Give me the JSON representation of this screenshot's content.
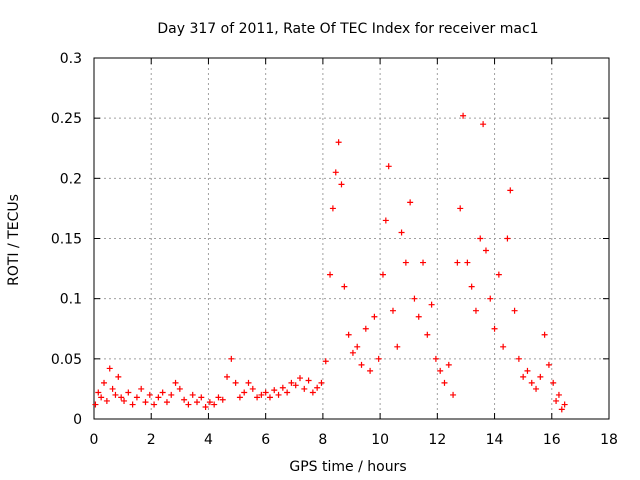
{
  "chart_data": {
    "type": "scatter",
    "title": "Day 317 of 2011, Rate Of TEC Index for receiver mac1",
    "xlabel": "GPS time / hours",
    "ylabel": "ROTI / TECUs",
    "xlim": [
      0,
      18
    ],
    "ylim": [
      0,
      0.3
    ],
    "xticks": [
      0,
      2,
      4,
      6,
      8,
      10,
      12,
      14,
      16,
      18
    ],
    "yticks": [
      0,
      0.05,
      0.1,
      0.15,
      0.2,
      0.25,
      0.3
    ],
    "xtick_labels": [
      "0",
      "2",
      "4",
      "6",
      "8",
      "10",
      "12",
      "14",
      "16",
      "18"
    ],
    "ytick_labels": [
      "0",
      "0.05",
      "0.1",
      "0.15",
      "0.2",
      "0.25",
      "0.3"
    ],
    "grid": true,
    "marker": "+",
    "marker_color": "#ff0000",
    "series": [
      {
        "name": "mac1",
        "points": [
          [
            0.05,
            0.012
          ],
          [
            0.15,
            0.022
          ],
          [
            0.25,
            0.018
          ],
          [
            0.35,
            0.03
          ],
          [
            0.45,
            0.015
          ],
          [
            0.55,
            0.042
          ],
          [
            0.65,
            0.025
          ],
          [
            0.75,
            0.02
          ],
          [
            0.85,
            0.035
          ],
          [
            0.95,
            0.018
          ],
          [
            1.05,
            0.015
          ],
          [
            1.2,
            0.022
          ],
          [
            1.35,
            0.012
          ],
          [
            1.5,
            0.018
          ],
          [
            1.65,
            0.025
          ],
          [
            1.8,
            0.014
          ],
          [
            1.95,
            0.02
          ],
          [
            2.1,
            0.012
          ],
          [
            2.25,
            0.018
          ],
          [
            2.4,
            0.022
          ],
          [
            2.55,
            0.014
          ],
          [
            2.7,
            0.02
          ],
          [
            2.85,
            0.03
          ],
          [
            3.0,
            0.025
          ],
          [
            3.15,
            0.016
          ],
          [
            3.3,
            0.012
          ],
          [
            3.45,
            0.02
          ],
          [
            3.6,
            0.014
          ],
          [
            3.75,
            0.018
          ],
          [
            3.9,
            0.01
          ],
          [
            4.05,
            0.014
          ],
          [
            4.2,
            0.012
          ],
          [
            4.35,
            0.018
          ],
          [
            4.5,
            0.016
          ],
          [
            4.65,
            0.035
          ],
          [
            4.8,
            0.05
          ],
          [
            4.95,
            0.03
          ],
          [
            5.1,
            0.018
          ],
          [
            5.25,
            0.022
          ],
          [
            5.4,
            0.03
          ],
          [
            5.55,
            0.025
          ],
          [
            5.7,
            0.018
          ],
          [
            5.85,
            0.02
          ],
          [
            6.0,
            0.022
          ],
          [
            6.15,
            0.018
          ],
          [
            6.3,
            0.024
          ],
          [
            6.45,
            0.02
          ],
          [
            6.6,
            0.026
          ],
          [
            6.75,
            0.022
          ],
          [
            6.9,
            0.03
          ],
          [
            7.05,
            0.028
          ],
          [
            7.2,
            0.034
          ],
          [
            7.35,
            0.025
          ],
          [
            7.5,
            0.032
          ],
          [
            7.65,
            0.022
          ],
          [
            7.8,
            0.026
          ],
          [
            7.95,
            0.03
          ],
          [
            8.1,
            0.048
          ],
          [
            8.25,
            0.12
          ],
          [
            8.35,
            0.175
          ],
          [
            8.45,
            0.205
          ],
          [
            8.55,
            0.23
          ],
          [
            8.65,
            0.195
          ],
          [
            8.75,
            0.11
          ],
          [
            8.9,
            0.07
          ],
          [
            9.05,
            0.055
          ],
          [
            9.2,
            0.06
          ],
          [
            9.35,
            0.045
          ],
          [
            9.5,
            0.075
          ],
          [
            9.65,
            0.04
          ],
          [
            9.8,
            0.085
          ],
          [
            9.95,
            0.05
          ],
          [
            10.1,
            0.12
          ],
          [
            10.2,
            0.165
          ],
          [
            10.3,
            0.21
          ],
          [
            10.45,
            0.09
          ],
          [
            10.6,
            0.06
          ],
          [
            10.75,
            0.155
          ],
          [
            10.9,
            0.13
          ],
          [
            11.05,
            0.18
          ],
          [
            11.2,
            0.1
          ],
          [
            11.35,
            0.085
          ],
          [
            11.5,
            0.13
          ],
          [
            11.65,
            0.07
          ],
          [
            11.8,
            0.095
          ],
          [
            11.95,
            0.05
          ],
          [
            12.1,
            0.04
          ],
          [
            12.25,
            0.03
          ],
          [
            12.4,
            0.045
          ],
          [
            12.55,
            0.02
          ],
          [
            12.7,
            0.13
          ],
          [
            12.8,
            0.175
          ],
          [
            12.9,
            0.252
          ],
          [
            13.05,
            0.13
          ],
          [
            13.2,
            0.11
          ],
          [
            13.35,
            0.09
          ],
          [
            13.5,
            0.15
          ],
          [
            13.6,
            0.245
          ],
          [
            13.7,
            0.14
          ],
          [
            13.85,
            0.1
          ],
          [
            14.0,
            0.075
          ],
          [
            14.15,
            0.12
          ],
          [
            14.3,
            0.06
          ],
          [
            14.45,
            0.15
          ],
          [
            14.55,
            0.19
          ],
          [
            14.7,
            0.09
          ],
          [
            14.85,
            0.05
          ],
          [
            15.0,
            0.035
          ],
          [
            15.15,
            0.04
          ],
          [
            15.3,
            0.03
          ],
          [
            15.45,
            0.025
          ],
          [
            15.6,
            0.035
          ],
          [
            15.75,
            0.07
          ],
          [
            15.9,
            0.045
          ],
          [
            16.05,
            0.03
          ],
          [
            16.15,
            0.015
          ],
          [
            16.25,
            0.02
          ],
          [
            16.35,
            0.008
          ],
          [
            16.45,
            0.012
          ]
        ]
      }
    ]
  }
}
